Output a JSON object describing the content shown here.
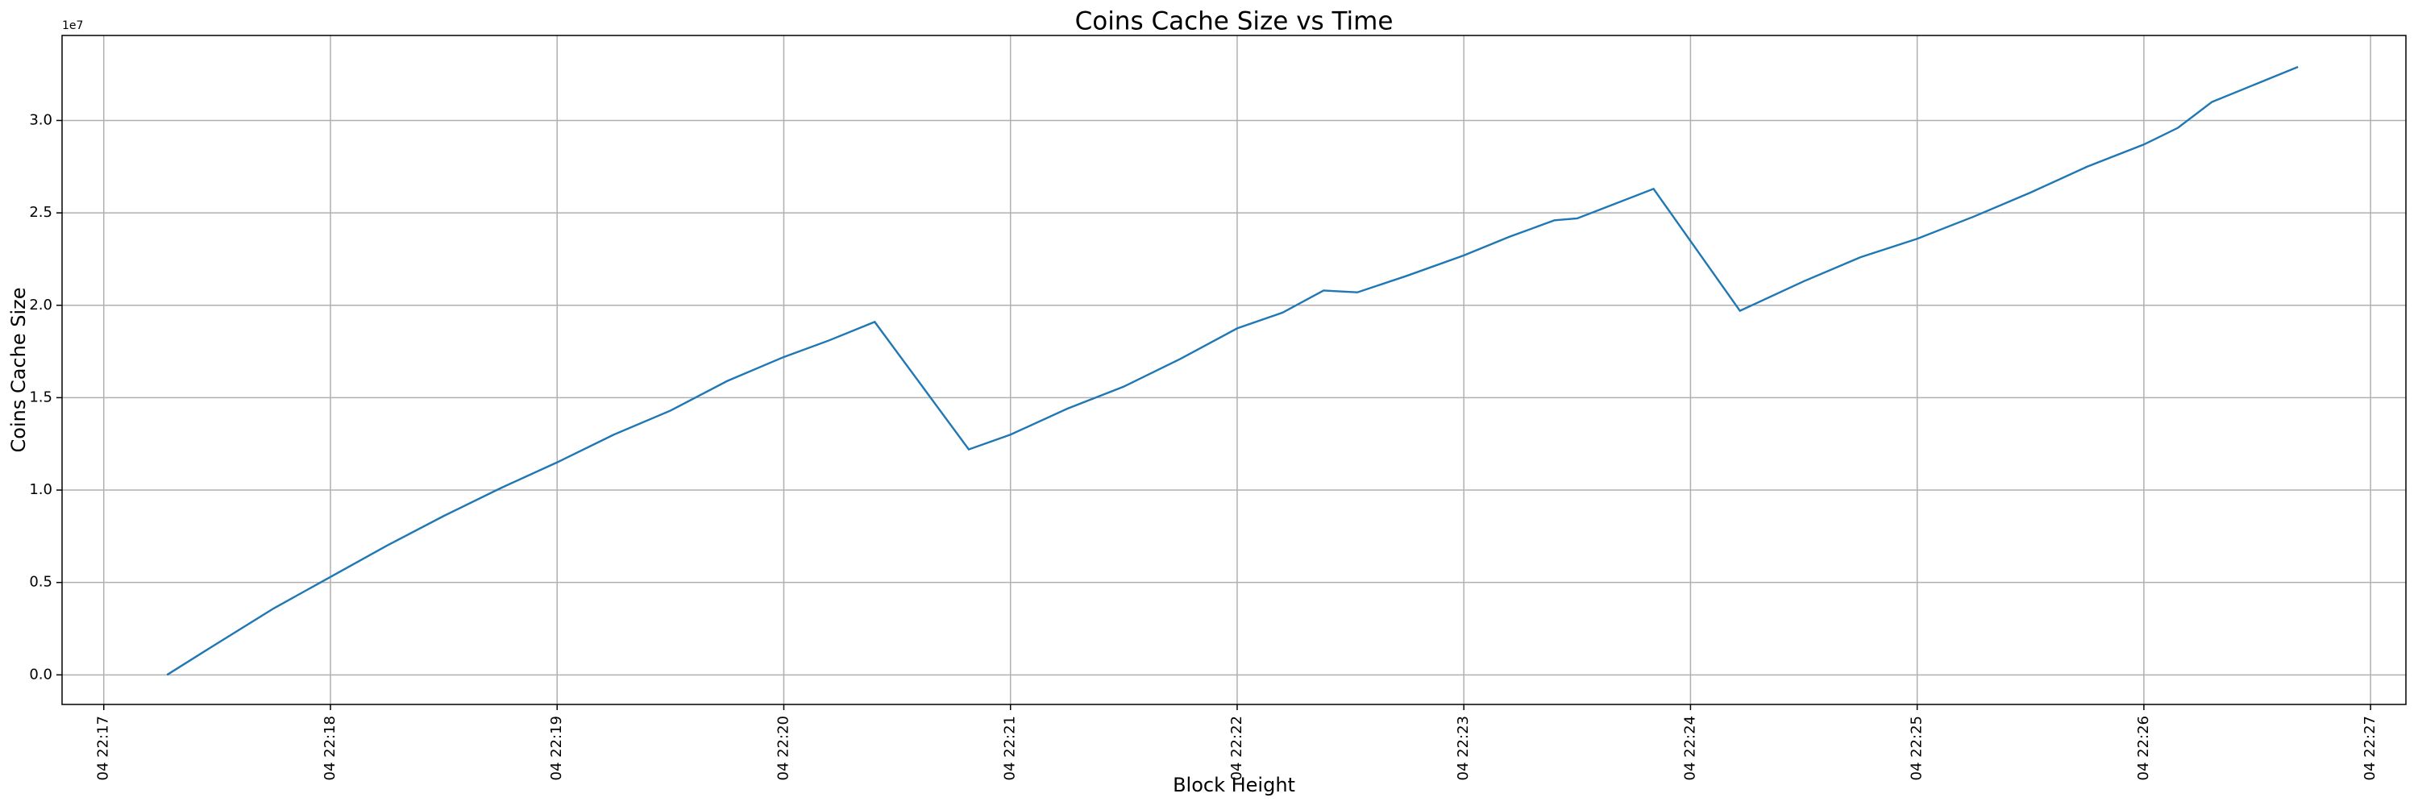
{
  "chart_data": {
    "type": "line",
    "title": "Coins Cache Size vs Time",
    "x_label": "Block Height",
    "y_label": "Coins Cache Size",
    "y_offset_label": "1e7",
    "x": [
      17.279,
      17.5,
      17.75,
      18.0,
      18.25,
      18.5,
      18.75,
      19.0,
      19.25,
      19.5,
      19.75,
      20.0,
      20.2,
      20.401,
      20.816,
      21.0,
      21.25,
      21.5,
      21.75,
      22.0,
      22.2,
      22.381,
      22.53,
      22.75,
      23.0,
      23.2,
      23.4,
      23.5,
      23.837,
      24.218,
      24.5,
      24.75,
      25.0,
      25.25,
      25.5,
      25.75,
      26.0,
      26.15,
      26.3,
      26.5,
      26.68
    ],
    "series": [
      {
        "color": "#1f77b4",
        "values": [
          0.0,
          0.17,
          0.36,
          0.53,
          0.7,
          0.86,
          1.01,
          1.15,
          1.3,
          1.43,
          1.59,
          1.72,
          1.81,
          1.91,
          1.22,
          1.3,
          1.44,
          1.56,
          1.71,
          1.875,
          1.96,
          2.08,
          2.07,
          2.16,
          2.27,
          2.37,
          2.46,
          2.47,
          2.63,
          1.97,
          2.13,
          2.26,
          2.36,
          2.48,
          2.61,
          2.75,
          2.87,
          2.96,
          3.1,
          3.2,
          3.29
        ]
      }
    ],
    "xlim": [
      16.816,
      27.156
    ],
    "xticks": [
      {
        "value": 17,
        "label": "04 22:17"
      },
      {
        "value": 18,
        "label": "04 22:18"
      },
      {
        "value": 19,
        "label": "04 22:19"
      },
      {
        "value": 20,
        "label": "04 22:20"
      },
      {
        "value": 21,
        "label": "04 22:21"
      },
      {
        "value": 22,
        "label": "04 22:22"
      },
      {
        "value": 23,
        "label": "04 22:23"
      },
      {
        "value": 24,
        "label": "04 22:24"
      },
      {
        "value": 25,
        "label": "04 22:25"
      },
      {
        "value": 26,
        "label": "04 22:26"
      },
      {
        "value": 27,
        "label": "04 22:27"
      }
    ],
    "ylim": [
      -0.16,
      3.46
    ],
    "yticks": [
      {
        "value": 0,
        "label": "0.0"
      },
      {
        "value": 0.5,
        "label": "0.5"
      },
      {
        "value": 1,
        "label": "1.0"
      },
      {
        "value": 1.5,
        "label": "1.5"
      },
      {
        "value": 2,
        "label": "2.0"
      },
      {
        "value": 2.5,
        "label": "2.5"
      },
      {
        "value": 3,
        "label": "3.0"
      }
    ],
    "grid": true
  }
}
